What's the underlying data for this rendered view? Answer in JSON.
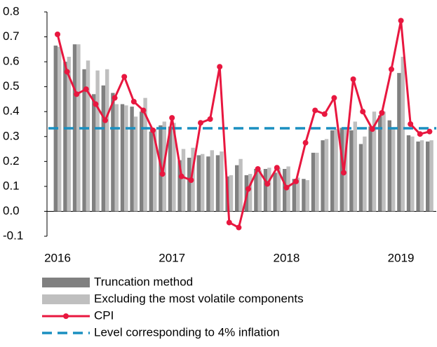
{
  "chart_data": {
    "type": "bar-line",
    "categories": [
      "2016",
      null,
      null,
      null,
      null,
      null,
      null,
      null,
      null,
      null,
      null,
      null,
      "2017",
      null,
      null,
      null,
      null,
      null,
      null,
      null,
      null,
      null,
      null,
      null,
      "2018",
      null,
      null,
      null,
      null,
      null,
      null,
      null,
      null,
      null,
      null,
      null,
      "2019",
      null,
      null,
      null
    ],
    "series": [
      {
        "name": "Truncation method",
        "type": "bar",
        "color": "#808080",
        "values": [
          0.665,
          0.6,
          0.67,
          0.57,
          0.47,
          0.505,
          0.475,
          0.43,
          0.42,
          0.4,
          0.32,
          0.345,
          0.34,
          0.205,
          0.215,
          0.225,
          0.22,
          0.225,
          0.14,
          0.185,
          0.145,
          0.17,
          0.17,
          0.155,
          0.17,
          0.13,
          0.13,
          0.235,
          0.285,
          0.325,
          0.335,
          0.325,
          0.27,
          0.34,
          0.385,
          0.365,
          0.555,
          0.305,
          0.28,
          0.28
        ]
      },
      {
        "name": "Excluding the most volatile components",
        "type": "bar",
        "color": "#bfbfbf",
        "values": [
          0.66,
          0.62,
          0.67,
          0.605,
          0.565,
          0.57,
          0.43,
          0.425,
          0.38,
          0.455,
          0.33,
          0.36,
          0.355,
          0.25,
          0.255,
          0.23,
          0.245,
          0.24,
          0.145,
          0.21,
          0.15,
          0.165,
          0.175,
          0.175,
          0.18,
          0.135,
          0.125,
          0.235,
          0.29,
          0.33,
          0.33,
          0.36,
          0.3,
          0.4,
          0.4,
          0.33,
          0.62,
          0.3,
          0.285,
          0.285
        ]
      },
      {
        "name": "CPI",
        "type": "line",
        "color": "#e8173f",
        "values": [
          0.71,
          0.56,
          0.47,
          0.49,
          0.43,
          0.365,
          0.455,
          0.54,
          0.44,
          0.405,
          0.325,
          0.15,
          0.375,
          0.14,
          0.125,
          0.355,
          0.37,
          0.58,
          -0.045,
          -0.065,
          0.09,
          0.17,
          0.11,
          0.175,
          0.095,
          0.12,
          0.275,
          0.405,
          0.39,
          0.455,
          0.155,
          0.53,
          0.4,
          0.33,
          0.395,
          0.57,
          0.765,
          0.35,
          0.31,
          0.32
        ]
      },
      {
        "name": "Level corresponding to 4% inflation",
        "type": "level",
        "color": "#1a8fc0",
        "value": 0.333
      }
    ],
    "ylim": [
      -0.1,
      0.8
    ],
    "yticks": [
      -0.1,
      {
        "value": 0,
        "label": "0.0"
      },
      0.1,
      0.2,
      0.3,
      0.4,
      0.5,
      0.6,
      0.7,
      0.8
    ],
    "legend": "bottom"
  }
}
